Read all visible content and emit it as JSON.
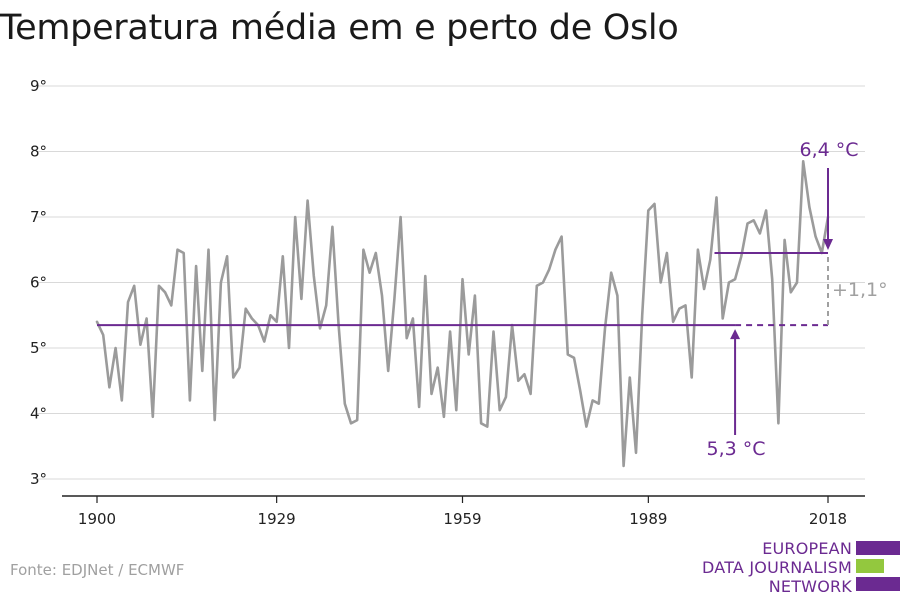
{
  "title": "Temperatura média em e perto de Oslo",
  "source": "Fonte: EDJNet / ECMWF",
  "logo": {
    "lines": [
      "EUROPEAN",
      "DATA JOURNALISM",
      "NETWORK"
    ],
    "colors": {
      "purple": "#6b2a91",
      "green": "#93c83e"
    }
  },
  "colors": {
    "series": "#9b9b9b",
    "average": "#6b2a91",
    "grid": "#d9d9d9",
    "axis": "#222222",
    "difference": "#a0a0a0"
  },
  "chart_data": {
    "type": "line",
    "ylim": [
      3,
      9
    ],
    "xlim": [
      1900,
      2018
    ],
    "y_ticks": [
      {
        "value": 3,
        "label": "3°"
      },
      {
        "value": 4,
        "label": "4°"
      },
      {
        "value": 5,
        "label": "5°"
      },
      {
        "value": 6,
        "label": "6°"
      },
      {
        "value": 7,
        "label": "7°"
      },
      {
        "value": 8,
        "label": "8°"
      },
      {
        "value": 9,
        "label": "9°"
      }
    ],
    "x_ticks": [
      {
        "value": 1900,
        "label": "1900"
      },
      {
        "value": 1929,
        "label": "1929"
      },
      {
        "value": 1959,
        "label": "1959"
      },
      {
        "value": 1989,
        "label": "1989"
      },
      {
        "value": 2018,
        "label": "2018"
      }
    ],
    "grid": true,
    "x": [
      1900,
      1901,
      1902,
      1903,
      1904,
      1905,
      1906,
      1907,
      1908,
      1909,
      1910,
      1911,
      1912,
      1913,
      1914,
      1915,
      1916,
      1917,
      1918,
      1919,
      1920,
      1921,
      1922,
      1923,
      1924,
      1925,
      1926,
      1927,
      1928,
      1929,
      1930,
      1931,
      1932,
      1933,
      1934,
      1935,
      1936,
      1937,
      1938,
      1939,
      1940,
      1941,
      1942,
      1943,
      1944,
      1945,
      1946,
      1947,
      1948,
      1949,
      1950,
      1951,
      1952,
      1953,
      1954,
      1955,
      1956,
      1957,
      1958,
      1959,
      1960,
      1961,
      1962,
      1963,
      1964,
      1965,
      1966,
      1967,
      1968,
      1969,
      1970,
      1971,
      1972,
      1973,
      1974,
      1975,
      1976,
      1977,
      1978,
      1979,
      1980,
      1981,
      1982,
      1983,
      1984,
      1985,
      1986,
      1987,
      1988,
      1989,
      1990,
      1991,
      1992,
      1993,
      1994,
      1995,
      1996,
      1997,
      1998,
      1999,
      2000,
      2001,
      2002,
      2003,
      2004,
      2005,
      2006,
      2007,
      2008,
      2009,
      2010,
      2011,
      2012,
      2013,
      2014,
      2015,
      2016,
      2017,
      2018
    ],
    "series": [
      {
        "values": [
          5.4,
          5.2,
          4.4,
          5.0,
          4.2,
          5.7,
          5.95,
          5.05,
          5.45,
          3.95,
          5.95,
          5.85,
          5.65,
          6.5,
          6.45,
          4.2,
          6.25,
          4.65,
          6.5,
          3.9,
          6.0,
          6.4,
          4.55,
          4.7,
          5.6,
          5.45,
          5.35,
          5.1,
          5.5,
          5.4,
          6.4,
          5.0,
          7.0,
          5.75,
          7.25,
          6.1,
          5.3,
          5.65,
          6.85,
          5.35,
          4.15,
          3.85,
          3.9,
          6.5,
          6.15,
          6.45,
          5.8,
          4.65,
          5.75,
          7.0,
          5.15,
          5.45,
          4.1,
          6.1,
          4.3,
          4.7,
          3.95,
          5.25,
          4.05,
          6.05,
          4.9,
          5.8,
          3.85,
          3.8,
          5.25,
          4.05,
          4.25,
          5.35,
          4.5,
          4.6,
          4.3,
          5.95,
          6.0,
          6.2,
          6.5,
          6.7,
          4.9,
          4.85,
          4.35,
          3.8,
          4.2,
          4.15,
          5.3,
          6.15,
          5.8,
          3.2,
          4.55,
          3.4,
          5.5,
          7.1,
          7.2,
          6.0,
          6.45,
          5.4,
          5.6,
          5.65,
          4.55,
          6.5,
          5.9,
          6.35,
          7.3,
          5.45,
          6.0,
          6.05,
          6.4,
          6.9,
          6.95,
          6.75,
          7.1,
          6.05,
          3.85,
          6.65,
          5.85,
          6.0,
          7.85,
          7.15,
          6.7,
          6.45,
          7.0
        ]
      }
    ],
    "averages": [
      {
        "label": "5,3 °C",
        "value": 5.35,
        "from": 1900,
        "to": 2018
      },
      {
        "label": "6,4 °C",
        "value": 6.45,
        "from": 2000,
        "to": 2018
      }
    ],
    "difference_label": "+1,1°",
    "baseline_solid_to": 2003
  }
}
